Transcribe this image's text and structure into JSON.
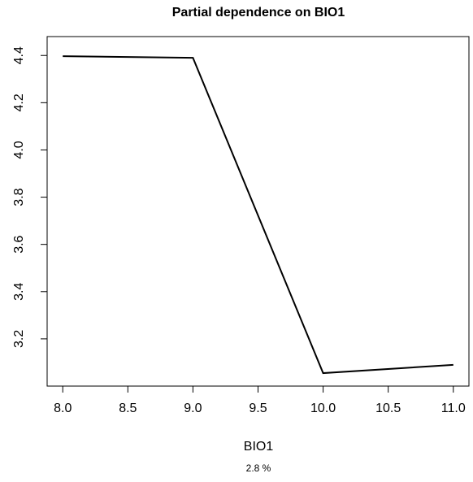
{
  "chart_data": {
    "type": "line",
    "title": "Partial dependence on BIO1",
    "x_label": "BIO1",
    "subtitle": "2.8 %",
    "x": [
      8,
      9,
      10,
      11
    ],
    "series": [
      {
        "color": "#000000",
        "values": [
          4.397,
          4.39,
          3.055,
          3.09
        ]
      }
    ],
    "xlim": [
      7.88,
      11.12
    ],
    "ylim": [
      3.0,
      4.48
    ],
    "xticks": [
      {
        "value": 8,
        "label": "8.0"
      },
      8.5,
      {
        "value": 9,
        "label": "9.0"
      },
      9.5,
      {
        "value": 10,
        "label": "10.0"
      },
      10.5,
      {
        "value": 11,
        "label": "11.0"
      }
    ],
    "yticks": [
      3.2,
      3.4,
      3.6,
      3.8,
      {
        "value": 4,
        "label": "4.0"
      },
      4.2,
      4.4
    ]
  }
}
